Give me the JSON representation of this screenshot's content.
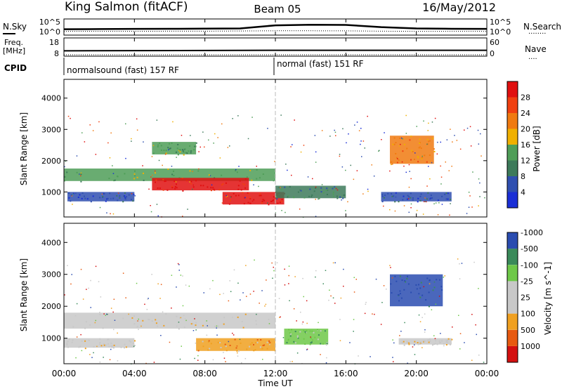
{
  "header": {
    "station": "King Salmon (fitACF)",
    "beam": "Beam 05",
    "date": "16/May/2012"
  },
  "noise_panel": {
    "left_label": "N.Sky",
    "right_label": "N.Search",
    "right_label_dots": "........",
    "left_ticks": [
      "10^5",
      "10^0"
    ],
    "right_ticks": [
      "10^5",
      "10^0"
    ]
  },
  "freq_panel": {
    "left_label_1": "Freq.",
    "left_label_2": "[MHz]",
    "left_ticks": [
      "18",
      "8"
    ],
    "right_label": "Nave",
    "right_label_dots": "....",
    "right_ticks": [
      "60",
      "0"
    ]
  },
  "cpid_panel": {
    "label": "CPID",
    "programs": [
      {
        "name": "normalsound (fast) 157 RF",
        "start": "00:00"
      },
      {
        "name": "normal (fast) 151 RF",
        "start": "12:00"
      }
    ]
  },
  "x_axis": {
    "label": "Time UT",
    "ticks": [
      "00:00",
      "04:00",
      "08:00",
      "12:00",
      "16:00",
      "20:00",
      "00:00"
    ]
  },
  "colors": {
    "power": [
      "#1a2fd6",
      "#2f4fb0",
      "#3d7a5a",
      "#4f9e58",
      "#f0b000",
      "#f07a10",
      "#f04010",
      "#e01010"
    ],
    "velocity": [
      "#d41010",
      "#e85a10",
      "#f0a020",
      "#c8c8c8",
      "#c8c8c8",
      "#6ec848",
      "#3a8a5a",
      "#2a4cb0"
    ]
  },
  "chart_data": [
    {
      "type": "line",
      "name": "noise",
      "x_range_hours": [
        0,
        24
      ],
      "y_scale": "log",
      "ylim": [
        1,
        100000
      ],
      "x": [
        0,
        2,
        4,
        6,
        8,
        10,
        12,
        14,
        16,
        18,
        20,
        22,
        24
      ],
      "series": [
        {
          "values": [
            60,
            70,
            80,
            90,
            100,
            120,
            2000,
            3500,
            3000,
            400,
            120,
            90,
            80
          ]
        },
        {
          "values": [
            8,
            9,
            9,
            10,
            10,
            12,
            15,
            15,
            14,
            10,
            9,
            9,
            8
          ]
        }
      ]
    },
    {
      "type": "line",
      "name": "frequency",
      "x_range_hours": [
        0,
        24
      ],
      "x": [
        0,
        12,
        24
      ],
      "series": [
        {
          "values": [
            10.8,
            11.2,
            11.2
          ]
        },
        {
          "values": [
            2,
            2,
            2
          ]
        }
      ]
    },
    {
      "type": "heatmap",
      "title": "Power",
      "xlabel": "Time UT",
      "ylabel": "Slant Range [km]",
      "x_range_hours": [
        0,
        24
      ],
      "ylim": [
        200,
        4600
      ],
      "yticks": [
        1000,
        2000,
        3000,
        4000
      ],
      "colorbar_label": "Power [dB]",
      "colorbar_ticks": [
        "4",
        "8",
        "12",
        "16",
        "20",
        "24",
        "28"
      ],
      "regions": [
        {
          "t0": 0,
          "t1": 12,
          "r0": 1350,
          "r1": 1750,
          "level": 3
        },
        {
          "t0": 5,
          "t1": 10.5,
          "r0": 1050,
          "r1": 1450,
          "level": 7
        },
        {
          "t0": 9,
          "t1": 12.5,
          "r0": 600,
          "r1": 1000,
          "level": 7
        },
        {
          "t0": 12,
          "t1": 16,
          "r0": 800,
          "r1": 1200,
          "level": 2
        },
        {
          "t0": 5,
          "t1": 7.5,
          "r0": 2200,
          "r1": 2600,
          "level": 3
        },
        {
          "t0": 18.5,
          "t1": 21,
          "r0": 1900,
          "r1": 2800,
          "level": 5
        },
        {
          "t0": 18,
          "t1": 22,
          "r0": 700,
          "r1": 1000,
          "level": 1
        },
        {
          "t0": 0.2,
          "t1": 4,
          "r0": 700,
          "r1": 1000,
          "level": 1
        }
      ]
    },
    {
      "type": "heatmap",
      "title": "Velocity",
      "xlabel": "Time UT",
      "ylabel": "Slant Range [km]",
      "x_range_hours": [
        0,
        24
      ],
      "ylim": [
        200,
        4600
      ],
      "yticks": [
        1000,
        2000,
        3000,
        4000
      ],
      "colorbar_label": "Velocity [m s^-1]",
      "colorbar_ticks": [
        "-1000",
        "-500",
        "-100",
        "-25",
        "25",
        "100",
        "500",
        "1000"
      ],
      "regions": [
        {
          "t0": 0,
          "t1": 12,
          "r0": 1300,
          "r1": 1800,
          "level": 3
        },
        {
          "t0": 7.5,
          "t1": 12,
          "r0": 600,
          "r1": 1000,
          "level": 2
        },
        {
          "t0": 12.5,
          "t1": 15,
          "r0": 800,
          "r1": 1300,
          "level": 5
        },
        {
          "t0": 18.5,
          "t1": 21.5,
          "r0": 2000,
          "r1": 3000,
          "level": 7
        },
        {
          "t0": 0,
          "t1": 4,
          "r0": 700,
          "r1": 1000,
          "level": 3
        },
        {
          "t0": 19,
          "t1": 22,
          "r0": 800,
          "r1": 1000,
          "level": 3
        }
      ]
    }
  ]
}
